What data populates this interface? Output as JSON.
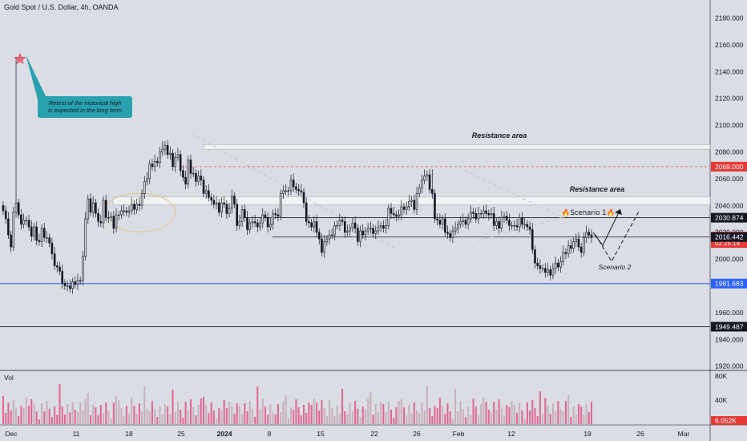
{
  "header": {
    "title": "Gold Spot / U.S. Dollar, 4h, OANDA"
  },
  "colors": {
    "background": "#dadde3",
    "up": "#131722",
    "down": "#131722",
    "support_line": "#2962ff",
    "resistance_dashed": "#e05050",
    "callout_bg": "#2aa1ae",
    "price_badge_red": "#e53935",
    "price_badge_dark": "#131722",
    "price_badge_blue": "#2962ff",
    "zone_fill": "#f1f2f4",
    "volume": "#e05080"
  },
  "chart_data": {
    "type": "candlestick",
    "symbol": "Gold Spot / U.S. Dollar",
    "interval": "4h",
    "source": "OANDA",
    "ylim": [
      1915,
      2190
    ],
    "y_ticks": [
      "2180.000",
      "2160.000",
      "2140.000",
      "2120.000",
      "2100.000",
      "2080.000",
      "2060.000",
      "2040.000",
      "2020.000",
      "2000.000",
      "1980.000",
      "1960.000",
      "1940.000",
      "1920.000"
    ],
    "x_ticks": [
      "Dec",
      "11",
      "18",
      "25",
      "2024",
      "8",
      "15",
      "22",
      "26",
      "Feb",
      "12",
      "19",
      "26",
      "Mar"
    ],
    "closes": [
      2036,
      2030,
      2018,
      2009,
      2035,
      2042,
      2033,
      2026,
      2029,
      2029,
      2024,
      2017,
      2024,
      2014,
      2013,
      2023,
      2016,
      2016,
      2012,
      2004,
      1995,
      1994,
      1991,
      1982,
      1980,
      1980,
      1978,
      1983,
      1981,
      1984,
      1984,
      2002,
      2030,
      2045,
      2035,
      2042,
      2034,
      2028,
      2027,
      2044,
      2031,
      2031,
      2032,
      2023,
      2033,
      2033,
      2036,
      2036,
      2035,
      2036,
      2041,
      2037,
      2041,
      2040,
      2049,
      2058,
      2060,
      2071,
      2069,
      2073,
      2072,
      2080,
      2082,
      2085,
      2078,
      2079,
      2069,
      2076,
      2078,
      2066,
      2061,
      2056,
      2074,
      2064,
      2064,
      2058,
      2062,
      2059,
      2049,
      2051,
      2046,
      2044,
      2041,
      2042,
      2035,
      2042,
      2041,
      2034,
      2038,
      2047,
      2041,
      2025,
      2028,
      2037,
      2031,
      2022,
      2027,
      2028,
      2027,
      2024,
      2027,
      2033,
      2031,
      2024,
      2026,
      2034,
      2033,
      2032,
      2049,
      2051,
      2051,
      2051,
      2059,
      2054,
      2052,
      2051,
      2050,
      2042,
      2028,
      2027,
      2024,
      2028,
      2020,
      2015,
      2005,
      2013,
      2015,
      2018,
      2018,
      2025,
      2025,
      2029,
      2028,
      2020,
      2021,
      2023,
      2027,
      2023,
      2013,
      2021,
      2018,
      2021,
      2023,
      2023,
      2019,
      2021,
      2024,
      2025,
      2023,
      2025,
      2038,
      2034,
      2033,
      2032,
      2033,
      2039,
      2037,
      2039,
      2043,
      2044,
      2037,
      2049,
      2053,
      2059,
      2062,
      2063,
      2052,
      2049,
      2030,
      2029,
      2026,
      2030,
      2020,
      2019,
      2016,
      2021,
      2023,
      2026,
      2028,
      2029,
      2026,
      2030,
      2035,
      2034,
      2030,
      2034,
      2034,
      2036,
      2034,
      2033,
      2034,
      2025,
      2028,
      2023,
      2031,
      2032,
      2029,
      2025,
      2025,
      2025,
      2024,
      2031,
      2026,
      2026,
      2024,
      2022,
      2007,
      1997,
      1995,
      1993,
      1993,
      1990,
      1992,
      1988,
      1993,
      1997,
      1994,
      1998,
      2005,
      2004,
      2010,
      2008,
      2013,
      2015,
      2009,
      2005,
      2016,
      2020,
      2018,
      2016
    ]
  },
  "price_scale": {
    "labels": [
      {
        "text": "2069.000",
        "value": 2069.0,
        "style": "red"
      },
      {
        "text": "2030.874",
        "value": 2030.874,
        "style": "dark"
      },
      {
        "text": "2016.795",
        "value": 2016.795,
        "style": "red-top",
        "countdown": "02:25:14"
      },
      {
        "text": "2016.442",
        "value": 2016.442,
        "style": "dark"
      },
      {
        "text": "1981.683",
        "value": 1981.683,
        "style": "blue"
      },
      {
        "text": "1949.487",
        "value": 1949.487,
        "style": "dark"
      }
    ]
  },
  "annotations": {
    "callout_text": [
      "Retest of the historical high",
      "is expected in the long term"
    ],
    "resistance_area_1": "Resistance area",
    "resistance_area_2": "Resistance area",
    "scenario_1": "🔥Scenario 1🔥",
    "scenario_2": "Scenario 2"
  },
  "volume": {
    "label": "Vol",
    "axis_labels": [
      "80K",
      "40K"
    ],
    "current": "6.052K"
  }
}
